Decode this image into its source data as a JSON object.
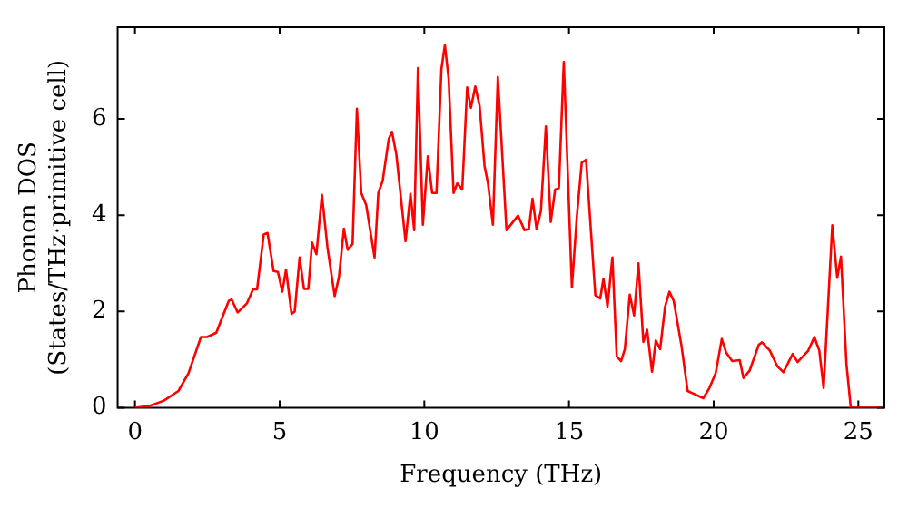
{
  "chart_data": {
    "type": "line",
    "xlabel": "Frequency (THz)",
    "ylabel": "Phonon DOS\n(States/THz·primitive cell)",
    "xlim": [
      -0.6,
      25.9
    ],
    "ylim": [
      0,
      7.9
    ],
    "xticks": [
      0,
      5,
      10,
      15,
      20,
      25
    ],
    "yticks": [
      0,
      2,
      4,
      6
    ],
    "grid": false,
    "legend": false,
    "marker": "none",
    "line_style": "solid",
    "series": [
      {
        "color": "#ff0000",
        "x": [
          0,
          0.5,
          1.0,
          1.5,
          1.85,
          2.28,
          2.49,
          2.81,
          3.24,
          3.34,
          3.55,
          3.87,
          4.08,
          4.22,
          4.45,
          4.58,
          4.79,
          4.94,
          5.09,
          5.22,
          5.41,
          5.52,
          5.69,
          5.84,
          5.99,
          6.12,
          6.27,
          6.46,
          6.65,
          6.9,
          7.05,
          7.22,
          7.35,
          7.52,
          7.67,
          7.82,
          7.99,
          8.28,
          8.41,
          8.56,
          8.77,
          8.88,
          9.03,
          9.35,
          9.52,
          9.65,
          9.78,
          9.95,
          10.12,
          10.27,
          10.42,
          10.59,
          10.71,
          10.84,
          11.01,
          11.14,
          11.31,
          11.48,
          11.61,
          11.76,
          11.91,
          12.08,
          12.2,
          12.37,
          12.54,
          12.84,
          13.24,
          13.46,
          13.61,
          13.74,
          13.88,
          14.03,
          14.2,
          14.37,
          14.52,
          14.65,
          14.82,
          15.1,
          15.27,
          15.44,
          15.59,
          15.91,
          16.08,
          16.19,
          16.33,
          16.5,
          16.65,
          16.8,
          16.93,
          17.1,
          17.25,
          17.4,
          17.57,
          17.7,
          17.87,
          18.0,
          18.15,
          18.32,
          18.47,
          18.62,
          18.89,
          19.1,
          19.64,
          19.85,
          20.07,
          20.28,
          20.43,
          20.64,
          20.9,
          21.03,
          21.24,
          21.56,
          21.67,
          21.94,
          22.2,
          22.41,
          22.73,
          22.9,
          23.26,
          23.48,
          23.65,
          23.8,
          24.1,
          24.27,
          24.4,
          24.59,
          24.74,
          25.8
        ],
        "values": [
          0,
          0.04,
          0.15,
          0.35,
          0.72,
          1.47,
          1.47,
          1.56,
          2.22,
          2.25,
          1.98,
          2.17,
          2.46,
          2.46,
          3.6,
          3.63,
          2.84,
          2.82,
          2.41,
          2.87,
          1.95,
          2.0,
          3.12,
          2.47,
          2.47,
          3.43,
          3.19,
          4.42,
          3.34,
          2.32,
          2.72,
          3.72,
          3.28,
          3.4,
          6.21,
          4.46,
          4.21,
          3.12,
          4.46,
          4.71,
          5.58,
          5.73,
          5.27,
          3.46,
          4.44,
          3.69,
          7.05,
          3.8,
          5.22,
          4.46,
          4.46,
          7.03,
          7.53,
          6.83,
          4.46,
          4.66,
          4.53,
          6.65,
          6.23,
          6.67,
          6.27,
          5.02,
          4.66,
          3.8,
          6.87,
          3.69,
          3.99,
          3.69,
          3.71,
          4.34,
          3.71,
          4.09,
          5.84,
          3.86,
          4.53,
          4.56,
          7.18,
          2.5,
          3.96,
          5.09,
          5.15,
          2.34,
          2.27,
          2.68,
          2.1,
          3.12,
          1.07,
          0.97,
          1.22,
          2.35,
          1.92,
          3.0,
          1.37,
          1.62,
          0.75,
          1.4,
          1.22,
          2.1,
          2.41,
          2.22,
          1.28,
          0.35,
          0.2,
          0.41,
          0.72,
          1.43,
          1.15,
          0.97,
          0.99,
          0.62,
          0.77,
          1.31,
          1.36,
          1.19,
          0.86,
          0.74,
          1.12,
          0.95,
          1.18,
          1.47,
          1.19,
          0.41,
          3.79,
          2.7,
          3.14,
          0.9,
          0,
          0
        ]
      }
    ]
  }
}
